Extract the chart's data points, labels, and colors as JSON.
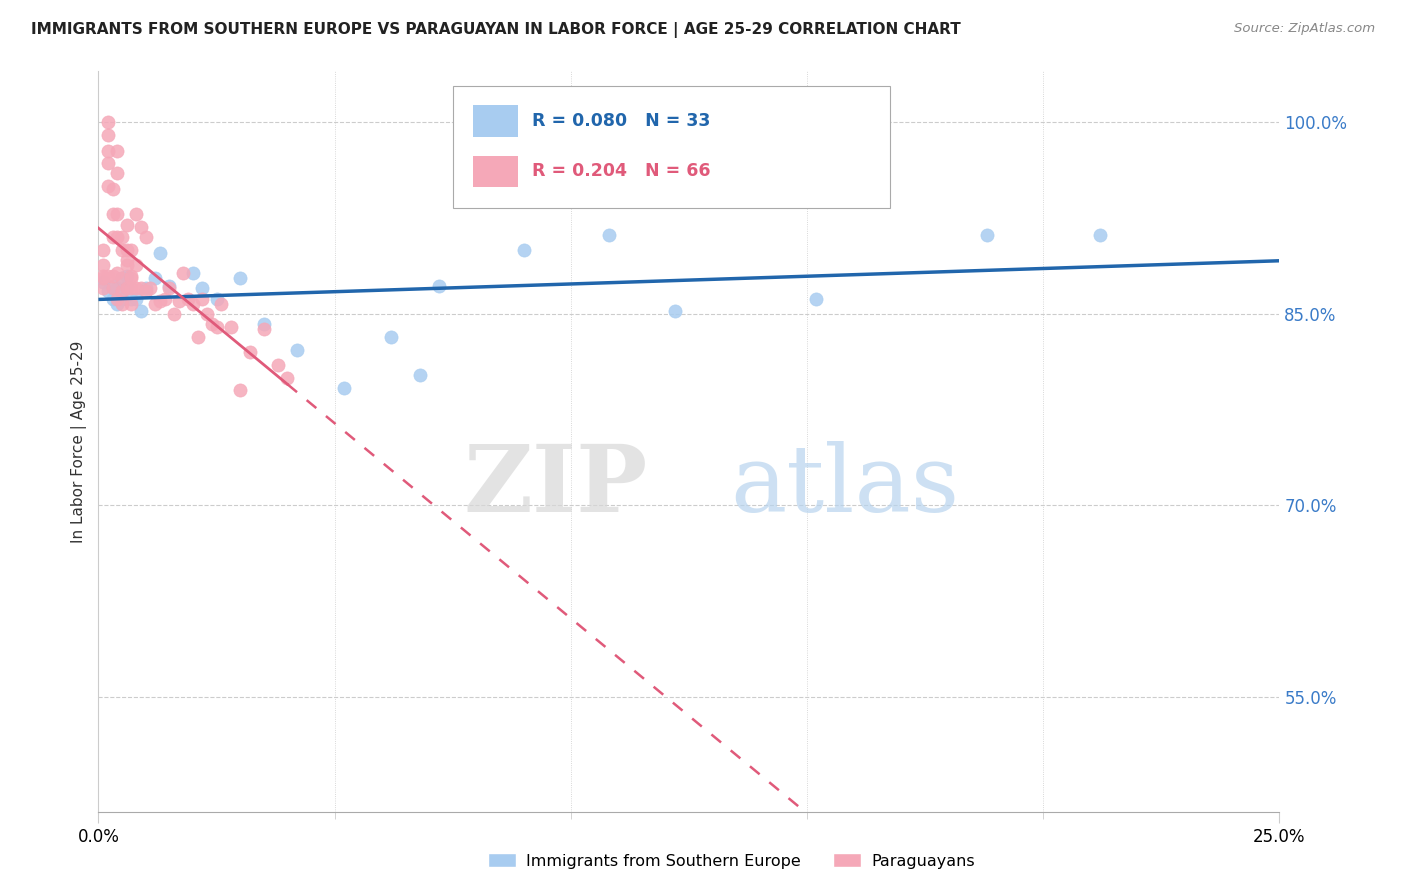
{
  "title": "IMMIGRANTS FROM SOUTHERN EUROPE VS PARAGUAYAN IN LABOR FORCE | AGE 25-29 CORRELATION CHART",
  "source": "Source: ZipAtlas.com",
  "ylabel": "In Labor Force | Age 25-29",
  "yticks": [
    0.55,
    0.7,
    0.85,
    1.0
  ],
  "ytick_labels": [
    "55.0%",
    "70.0%",
    "85.0%",
    "100.0%"
  ],
  "xlim": [
    0.0,
    0.25
  ],
  "ylim": [
    0.46,
    1.04
  ],
  "blue_R": 0.08,
  "blue_N": 33,
  "pink_R": 0.204,
  "pink_N": 66,
  "blue_color": "#A8CCF0",
  "pink_color": "#F5A8B8",
  "blue_line_color": "#2166AC",
  "pink_line_color": "#E05A7A",
  "legend_blue_label": "Immigrants from Southern Europe",
  "legend_pink_label": "Paraguayans",
  "watermark_zip": "ZIP",
  "watermark_atlas": "atlas",
  "blue_x": [
    0.001,
    0.002,
    0.003,
    0.003,
    0.004,
    0.004,
    0.005,
    0.005,
    0.006,
    0.006,
    0.007,
    0.008,
    0.009,
    0.01,
    0.012,
    0.013,
    0.015,
    0.02,
    0.022,
    0.025,
    0.03,
    0.035,
    0.042,
    0.052,
    0.062,
    0.068,
    0.072,
    0.09,
    0.108,
    0.122,
    0.152,
    0.188,
    0.212
  ],
  "blue_y": [
    0.875,
    0.868,
    0.862,
    0.872,
    0.87,
    0.858,
    0.878,
    0.862,
    0.872,
    0.88,
    0.862,
    0.862,
    0.852,
    0.87,
    0.878,
    0.898,
    0.872,
    0.882,
    0.87,
    0.862,
    0.878,
    0.842,
    0.822,
    0.792,
    0.832,
    0.802,
    0.872,
    0.9,
    0.912,
    0.852,
    0.862,
    0.912,
    0.912
  ],
  "pink_x": [
    0.001,
    0.001,
    0.001,
    0.001,
    0.001,
    0.002,
    0.002,
    0.002,
    0.002,
    0.002,
    0.002,
    0.003,
    0.003,
    0.003,
    0.003,
    0.003,
    0.004,
    0.004,
    0.004,
    0.004,
    0.004,
    0.004,
    0.005,
    0.005,
    0.005,
    0.005,
    0.005,
    0.006,
    0.006,
    0.006,
    0.006,
    0.006,
    0.007,
    0.007,
    0.007,
    0.007,
    0.007,
    0.008,
    0.008,
    0.008,
    0.009,
    0.009,
    0.01,
    0.01,
    0.011,
    0.012,
    0.013,
    0.014,
    0.015,
    0.016,
    0.017,
    0.018,
    0.019,
    0.02,
    0.021,
    0.022,
    0.023,
    0.024,
    0.025,
    0.026,
    0.028,
    0.03,
    0.032,
    0.035,
    0.038,
    0.04
  ],
  "pink_y": [
    0.87,
    0.878,
    0.888,
    0.9,
    0.88,
    0.95,
    0.968,
    0.978,
    0.99,
    1.0,
    0.88,
    0.91,
    0.928,
    0.948,
    0.87,
    0.88,
    0.96,
    0.978,
    0.91,
    0.882,
    0.928,
    0.862,
    0.9,
    0.91,
    0.878,
    0.858,
    0.868,
    0.92,
    0.9,
    0.87,
    0.888,
    0.892,
    0.87,
    0.88,
    0.9,
    0.878,
    0.858,
    0.888,
    0.928,
    0.87,
    0.918,
    0.87,
    0.91,
    0.868,
    0.87,
    0.858,
    0.86,
    0.862,
    0.87,
    0.85,
    0.86,
    0.882,
    0.862,
    0.858,
    0.832,
    0.862,
    0.85,
    0.842,
    0.84,
    0.858,
    0.84,
    0.79,
    0.82,
    0.838,
    0.81,
    0.8
  ],
  "pink_line_solid_end": 0.04,
  "blue_line_start": 0.0,
  "blue_line_end": 0.25
}
